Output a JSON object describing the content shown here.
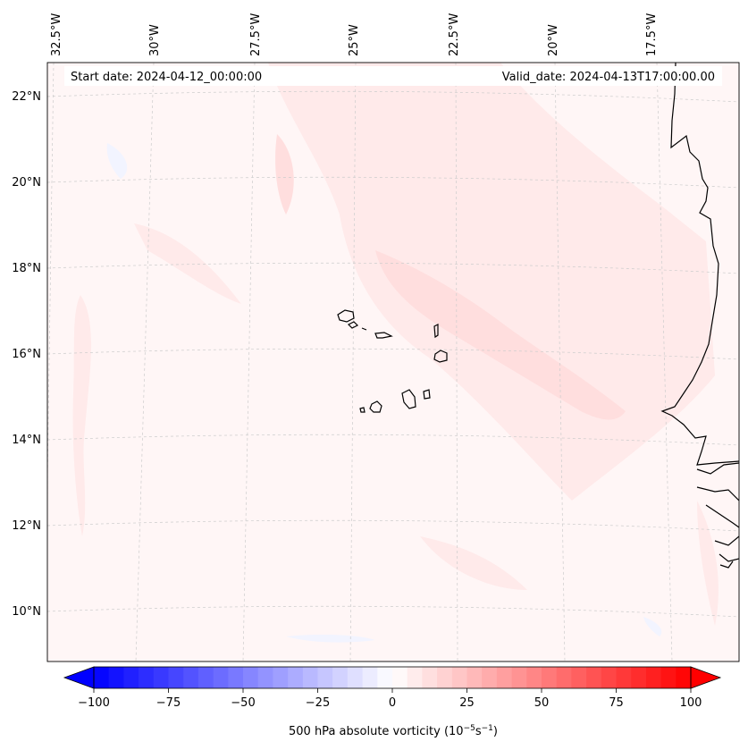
{
  "header": {
    "start_label": "Start date: 2024-04-12_00:00:00",
    "valid_label": "Valid_date: 2024-04-13T17:00:00.00"
  },
  "map": {
    "lon_labels": [
      "32.5°W",
      "30°W",
      "27.5°W",
      "25°W",
      "22.5°W",
      "20°W",
      "17.5°W"
    ],
    "lat_labels": [
      "22°N",
      "20°N",
      "18°N",
      "16°N",
      "14°N",
      "12°N",
      "10°N"
    ]
  },
  "colorbar": {
    "ticks": [
      "−100",
      "−75",
      "−50",
      "−25",
      "0",
      "25",
      "50",
      "75",
      "100"
    ],
    "label_main": "500 hPa absolute vorticity (10",
    "label_exp1": "−5",
    "label_mid": "s",
    "label_exp2": "−1",
    "label_end": ")",
    "min": -100,
    "max": 100,
    "levels": 40,
    "neg_color": "#0000ff",
    "pos_color": "#ff0000"
  },
  "colors": {
    "ocean_base": "#fff6f6",
    "vort_light": "#ffeaea",
    "vort_mid": "#ffdede",
    "neg_light": "#f2f4ff",
    "coast": "#000000",
    "grid": "#cccccc"
  }
}
